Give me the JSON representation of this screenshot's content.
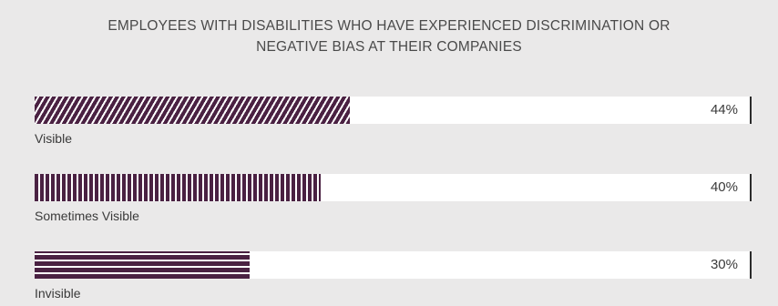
{
  "chart_data": {
    "type": "bar",
    "orientation": "horizontal",
    "title": "EMPLOYEES WITH DISABILITIES WHO HAVE EXPERIENCED DISCRIMINATION OR NEGATIVE BIAS AT THEIR COMPANIES",
    "title_lines": [
      "EMPLOYEES WITH DISABILITIES WHO HAVE EXPERIENCED DISCRIMINATION OR",
      "NEGATIVE BIAS AT THEIR COMPANIES"
    ],
    "categories": [
      "Visible",
      "Sometimes Visible",
      "Invisible"
    ],
    "values": [
      44,
      40,
      30
    ],
    "value_labels": [
      "44%",
      "40%",
      "30%"
    ],
    "xlim": [
      0,
      100
    ],
    "unit": "%",
    "patterns": [
      "diagonal",
      "vertical",
      "horizontal"
    ],
    "colors": {
      "fill": "#4a2142",
      "track": "#ffffff",
      "background": "#eae9e9"
    }
  }
}
